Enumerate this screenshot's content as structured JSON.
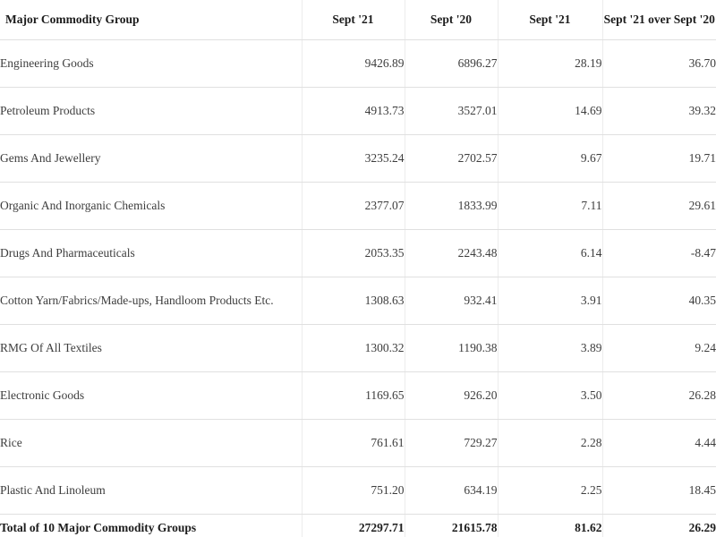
{
  "table": {
    "columns": [
      {
        "label": "Major Commodity Group"
      },
      {
        "label": "Sept '21"
      },
      {
        "label": "Sept '20"
      },
      {
        "label": "Sept '21"
      },
      {
        "label": "Sept '21 over Sept '20"
      }
    ],
    "rows": [
      {
        "label": "Engineering Goods",
        "values": [
          "9426.89",
          "6896.27",
          "28.19",
          "36.70"
        ]
      },
      {
        "label": "Petroleum Products",
        "values": [
          "4913.73",
          "3527.01",
          "14.69",
          "39.32"
        ]
      },
      {
        "label": "Gems And Jewellery",
        "values": [
          "3235.24",
          "2702.57",
          "9.67",
          "19.71"
        ]
      },
      {
        "label": "Organic And Inorganic Chemicals",
        "values": [
          "2377.07",
          "1833.99",
          "7.11",
          "29.61"
        ]
      },
      {
        "label": "Drugs And Pharmaceuticals",
        "values": [
          "2053.35",
          "2243.48",
          "6.14",
          "-8.47"
        ]
      },
      {
        "label": "Cotton Yarn/Fabrics/Made-ups, Handloom Products Etc.",
        "values": [
          "1308.63",
          "932.41",
          "3.91",
          "40.35"
        ]
      },
      {
        "label": "RMG Of All Textiles",
        "values": [
          "1300.32",
          "1190.38",
          "3.89",
          "9.24"
        ]
      },
      {
        "label": "Electronic Goods",
        "values": [
          "1169.65",
          "926.20",
          "3.50",
          "26.28"
        ]
      },
      {
        "label": "Rice",
        "values": [
          "761.61",
          "729.27",
          "2.28",
          "4.44"
        ]
      },
      {
        "label": "Plastic And Linoleum",
        "values": [
          "751.20",
          "634.19",
          "2.25",
          "18.45"
        ]
      }
    ],
    "total": {
      "label": "Total of 10 Major Commodity Groups",
      "values": [
        "27297.71",
        "21615.78",
        "81.62",
        "26.29"
      ]
    }
  },
  "colors": {
    "header_text": "#1c1c1c",
    "body_text": "#3d3d3d",
    "row_border": "#e0e0e0",
    "column_divider": "#ececec",
    "scrollbar_thumb": "#c6cfdb",
    "scrollbar_track": "#f1f3f5"
  }
}
